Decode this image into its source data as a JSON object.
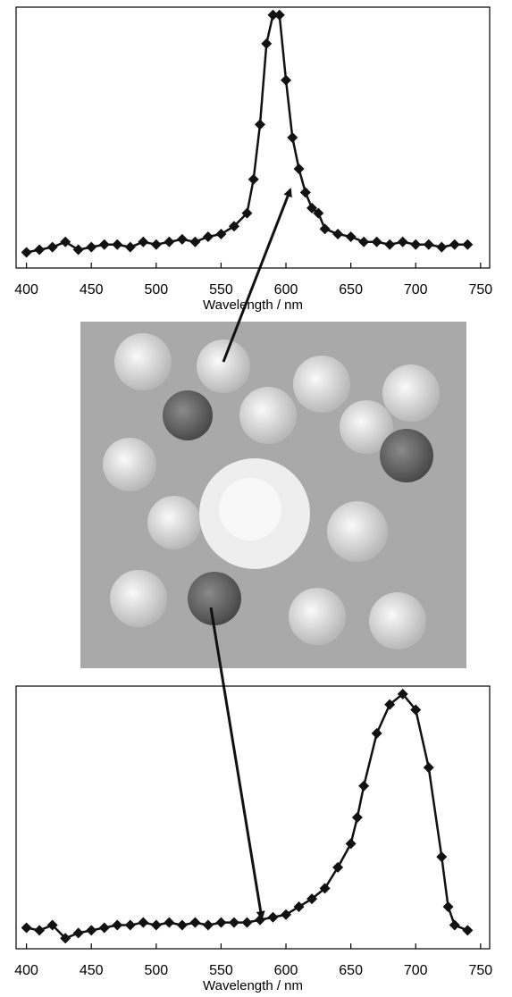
{
  "chart_data": [
    {
      "type": "line",
      "xlabel": "Wavelength / nm",
      "xlim": [
        392,
        757
      ],
      "ylim": [
        0,
        1
      ],
      "xticks": [
        400,
        450,
        500,
        550,
        600,
        650,
        700,
        750
      ],
      "series": [
        {
          "color": "#111111",
          "x": [
            400,
            410,
            420,
            430,
            440,
            450,
            460,
            470,
            480,
            490,
            500,
            510,
            520,
            530,
            540,
            550,
            560,
            570,
            575,
            580,
            585,
            590,
            595,
            600,
            605,
            610,
            615,
            620,
            625,
            630,
            640,
            650,
            660,
            670,
            680,
            690,
            700,
            710,
            720,
            730,
            740
          ],
          "values": [
            0.06,
            0.07,
            0.08,
            0.1,
            0.07,
            0.08,
            0.09,
            0.09,
            0.08,
            0.1,
            0.09,
            0.1,
            0.11,
            0.1,
            0.12,
            0.13,
            0.16,
            0.21,
            0.34,
            0.55,
            0.86,
            0.97,
            0.97,
            0.72,
            0.5,
            0.38,
            0.29,
            0.23,
            0.21,
            0.15,
            0.13,
            0.12,
            0.1,
            0.1,
            0.09,
            0.1,
            0.09,
            0.09,
            0.08,
            0.09,
            0.09
          ]
        }
      ]
    },
    {
      "type": "line",
      "xlabel": "Wavelength / nm",
      "xlim": [
        392,
        757
      ],
      "ylim": [
        0,
        1
      ],
      "xticks": [
        400,
        450,
        500,
        550,
        600,
        650,
        700,
        750
      ],
      "series": [
        {
          "color": "#111111",
          "x": [
            400,
            410,
            420,
            430,
            440,
            450,
            460,
            470,
            480,
            490,
            500,
            510,
            520,
            530,
            540,
            550,
            560,
            570,
            580,
            590,
            600,
            610,
            620,
            630,
            640,
            650,
            655,
            660,
            670,
            680,
            690,
            700,
            710,
            720,
            725,
            730,
            740
          ],
          "values": [
            0.08,
            0.07,
            0.09,
            0.04,
            0.06,
            0.07,
            0.08,
            0.09,
            0.09,
            0.1,
            0.09,
            0.1,
            0.09,
            0.1,
            0.09,
            0.1,
            0.1,
            0.1,
            0.11,
            0.12,
            0.13,
            0.16,
            0.19,
            0.23,
            0.31,
            0.4,
            0.5,
            0.62,
            0.82,
            0.93,
            0.97,
            0.91,
            0.69,
            0.35,
            0.16,
            0.09,
            0.07
          ]
        }
      ]
    }
  ]
}
